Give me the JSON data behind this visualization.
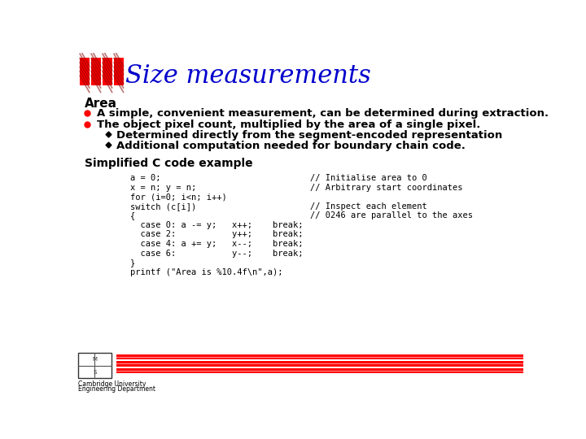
{
  "title": "Size measurements",
  "title_color": "#0000CC",
  "title_fontsize": 22,
  "bg_color": "#FFFFFF",
  "area_heading": "Area",
  "bullet1": "A simple, convenient measurement, can be determined during extraction.",
  "bullet2": "The object pixel count, multiplied by the area of a single pixel.",
  "sub_bullet1": "Determined directly from the segment-encoded representation",
  "sub_bullet2": "Additional computation needed for boundary chain code.",
  "code_heading": "Simplified C code example",
  "red_color": "#FF0000",
  "footer_text1": "Cambridge University",
  "footer_text2": "Engineering Department"
}
